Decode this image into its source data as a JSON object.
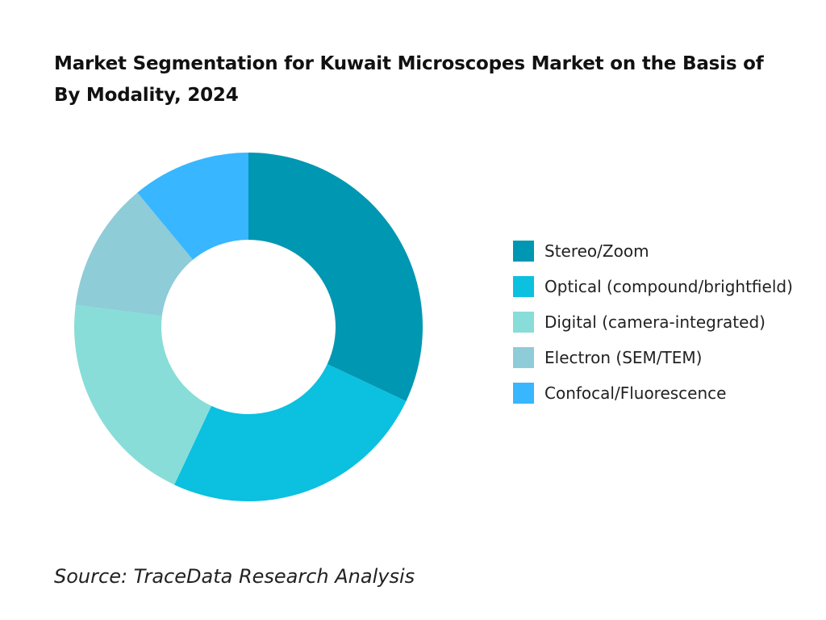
{
  "chart_data": {
    "type": "pie",
    "title": "Market Segmentation for Kuwait Microscopes Market on the Basis of By Modality, 2024",
    "donut": true,
    "categories": [
      "Stereo/Zoom",
      "Optical (compound/brightfield)",
      "Digital (camera-integrated)",
      "Electron (SEM/TEM)",
      "Confocal/Fluorescence"
    ],
    "values": [
      32,
      25,
      20,
      12,
      11
    ],
    "colors": [
      "#0097B2",
      "#0CC0DF",
      "#88DDD8",
      "#8ECCD8",
      "#38B6FF"
    ],
    "legend_position": "right"
  },
  "source": "Source: TraceData Research Analysis"
}
